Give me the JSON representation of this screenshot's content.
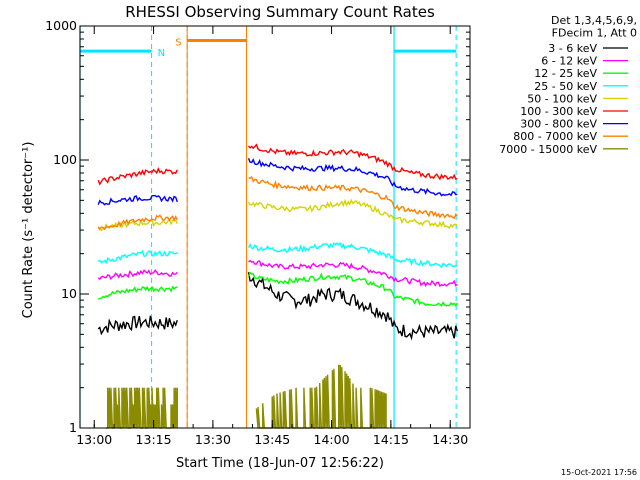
{
  "chart_data": {
    "type": "line",
    "title": "RHESSI Observing Summary Count Rates",
    "xlabel": "Start Time (18-Jun-07 12:56:22)",
    "ylabel": "Count Rate (s⁻¹ detector⁻¹)",
    "yscale": "log",
    "ylim": [
      1,
      1000
    ],
    "x_unit": "minutes after 13:00",
    "xlim": [
      -3.6,
      95
    ],
    "x_ticks": [
      {
        "value": 0,
        "label": "13:00"
      },
      {
        "value": 15,
        "label": "13:15"
      },
      {
        "value": 30,
        "label": "13:30"
      },
      {
        "value": 45,
        "label": "13:45"
      },
      {
        "value": 60,
        "label": "14:00"
      },
      {
        "value": 75,
        "label": "14:15"
      },
      {
        "value": 90,
        "label": "14:30"
      }
    ],
    "y_ticks": [
      {
        "value": 1,
        "label": "1"
      },
      {
        "value": 10,
        "label": "10"
      },
      {
        "value": 100,
        "label": "100"
      },
      {
        "value": 1000,
        "label": "1000"
      }
    ],
    "legend_header": [
      "Det 1,3,4,5,6,9,",
      "FDecim 1, Att 0"
    ],
    "data_gap": [
      21.5,
      38.5
    ],
    "series": [
      {
        "name": "3 - 6 keV",
        "color": "#000000",
        "x": [
          1,
          4,
          8,
          12,
          16,
          21,
          39,
          42,
          46,
          50,
          54,
          58,
          62,
          66,
          70,
          74,
          76,
          80,
          84,
          88,
          92
        ],
        "y": [
          5.5,
          5.8,
          6.0,
          6.2,
          6.1,
          6.0,
          14,
          12,
          10,
          9,
          9,
          10,
          10,
          9,
          8,
          7,
          5.5,
          5.3,
          5.2,
          5.2,
          5.2
        ]
      },
      {
        "name": "6 - 12 keV",
        "color": "#ff00ff",
        "x": [
          1,
          4,
          8,
          12,
          16,
          21,
          39,
          42,
          46,
          50,
          54,
          58,
          62,
          66,
          70,
          74,
          76,
          80,
          84,
          88,
          92
        ],
        "y": [
          13,
          13.5,
          14,
          14.5,
          14.5,
          14,
          18,
          17,
          16,
          16,
          16,
          16.5,
          16.5,
          16,
          15,
          14,
          13,
          12.5,
          12,
          12,
          12
        ]
      },
      {
        "name": "12 - 25 keV",
        "color": "#00ff00",
        "x": [
          1,
          4,
          8,
          12,
          16,
          21,
          39,
          42,
          46,
          50,
          54,
          58,
          62,
          66,
          70,
          74,
          76,
          80,
          84,
          88,
          92
        ],
        "y": [
          9.5,
          10,
          10.5,
          11,
          11,
          11,
          14,
          13,
          12.5,
          12.5,
          13,
          13.5,
          13.5,
          13,
          12,
          11,
          9.5,
          9,
          8.5,
          8.5,
          8.5
        ]
      },
      {
        "name": "25 - 50 keV",
        "color": "#00ffff",
        "x": [
          1,
          4,
          8,
          12,
          16,
          21,
          39,
          42,
          46,
          50,
          54,
          58,
          62,
          66,
          70,
          74,
          76,
          80,
          84,
          88,
          92
        ],
        "y": [
          17,
          18,
          19,
          20,
          20,
          20,
          23,
          22,
          21.5,
          21.5,
          22,
          23,
          23,
          22.5,
          21,
          19.5,
          18,
          17.5,
          17,
          16.5,
          16.5
        ]
      },
      {
        "name": "50 - 100 keV",
        "color": "#d4d400",
        "x": [
          1,
          4,
          8,
          12,
          16,
          21,
          39,
          42,
          46,
          50,
          54,
          58,
          62,
          66,
          70,
          74,
          76,
          80,
          84,
          88,
          92
        ],
        "y": [
          31,
          32,
          33,
          34,
          34,
          35,
          48,
          46,
          44,
          43,
          43,
          45,
          48,
          48,
          44,
          39,
          36,
          35,
          34,
          33,
          32
        ]
      },
      {
        "name": "100 - 300 keV",
        "color": "#ff0000",
        "x": [
          1,
          4,
          8,
          12,
          16,
          21,
          39,
          42,
          46,
          50,
          54,
          58,
          62,
          66,
          70,
          74,
          76,
          80,
          84,
          88,
          92
        ],
        "y": [
          68,
          72,
          76,
          80,
          83,
          82,
          130,
          122,
          115,
          112,
          112,
          113,
          115,
          113,
          105,
          95,
          86,
          80,
          77,
          75,
          74
        ]
      },
      {
        "name": "300 - 800 keV",
        "color": "#0000ff",
        "x": [
          1,
          4,
          8,
          12,
          16,
          21,
          39,
          42,
          46,
          50,
          54,
          58,
          62,
          66,
          70,
          74,
          76,
          80,
          84,
          88,
          92
        ],
        "y": [
          48,
          49,
          51,
          52,
          52,
          51,
          100,
          95,
          90,
          87,
          86,
          87,
          87,
          85,
          80,
          73,
          64,
          60,
          58,
          56,
          55
        ]
      },
      {
        "name": "800 - 7000 keV",
        "color": "#ff8000",
        "x": [
          1,
          4,
          8,
          12,
          16,
          21,
          39,
          42,
          46,
          50,
          54,
          58,
          62,
          66,
          70,
          74,
          76,
          80,
          84,
          88,
          92
        ],
        "y": [
          31,
          32,
          34,
          36,
          37,
          37,
          73,
          69,
          65,
          63,
          62,
          62,
          62,
          61,
          57,
          52,
          45,
          42,
          40,
          39,
          38
        ]
      },
      {
        "name": "7000 - 15000 keV",
        "color": "#8b8b00",
        "x": [
          3,
          9,
          14,
          18,
          21,
          41,
          46,
          51,
          56,
          62,
          66,
          70,
          74
        ],
        "y": [
          2,
          2,
          2,
          2,
          2,
          1.4,
          1.8,
          2,
          2,
          3,
          2,
          2,
          1.8
        ]
      }
    ],
    "flags": [
      {
        "label": "N",
        "color": "#00e5ff",
        "level": 650,
        "segments": [
          [
            -3.6,
            14.5
          ],
          [
            75.8,
            91.5
          ]
        ],
        "markers": [
          14.5,
          91.5
        ]
      },
      {
        "label": "S",
        "color": "#ff8000",
        "level": 780,
        "segments": [
          [
            23.5,
            38.5
          ]
        ],
        "markers": [
          23.5,
          38.5
        ]
      }
    ],
    "saa_region": [
      23.5,
      38.5
    ],
    "night_markers_solid": [
      -3.6,
      75.8
    ],
    "footer_date": "15-Oct-2021 17:56"
  }
}
